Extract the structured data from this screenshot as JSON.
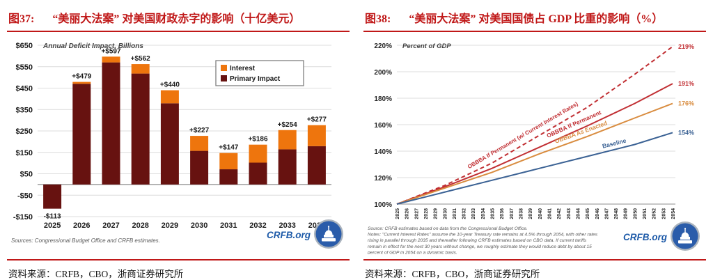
{
  "colors": {
    "title_red": "#c01818",
    "bar_maroon": "#671210",
    "bar_orange": "#ee750d",
    "line_red": "#c12f33",
    "line_orange": "#d98c3f",
    "line_blue": "#3b6294",
    "crfb_blue": "#1d5aa8",
    "grid_gray": "#dcdcdc",
    "axis_gray": "#8c8c8c",
    "label_dark": "#1a1a1a",
    "note_gray": "#595959"
  },
  "panels": [
    {
      "figure_label": "图37:",
      "title": "“美丽大法案” 对美国财政赤字的影响（十亿美元）",
      "footer": "资料来源：CRFB，CBO，浙商证券研究所"
    },
    {
      "figure_label": "图38:",
      "title": "“美丽大法案” 对美国国债占 GDP 比重的影响（%）",
      "footer": "资料来源：CRFB，CBO，浙商证券研究所"
    }
  ],
  "chart_data": [
    {
      "type": "bar",
      "stacked": true,
      "title": "Annual Deficit Impact, Billions",
      "categories": [
        "2025",
        "2026",
        "2027",
        "2028",
        "2029",
        "2030",
        "2031",
        "2032",
        "2033",
        "2034"
      ],
      "series": [
        {
          "name": "Primary Impact",
          "color": "#671210",
          "values": [
            -113,
            470,
            570,
            518,
            379,
            157,
            71,
            102,
            164,
            179
          ]
        },
        {
          "name": "Interest",
          "color": "#ee750d",
          "values": [
            0,
            9,
            27,
            44,
            61,
            70,
            76,
            84,
            90,
            98
          ]
        }
      ],
      "totals": [
        -113,
        479,
        597,
        562,
        440,
        227,
        147,
        186,
        254,
        277
      ],
      "total_labels": [
        "-$113",
        "+$479",
        "+$597",
        "+$562",
        "+$440",
        "+$227",
        "+$147",
        "+$186",
        "+$254",
        "+$277"
      ],
      "ylim": [
        -150,
        650
      ],
      "yticks": [
        650,
        550,
        450,
        350,
        250,
        150,
        50,
        -50,
        -150
      ],
      "ytick_labels": [
        "$650",
        "$550",
        "$450",
        "$350",
        "$250",
        "$150",
        "$50",
        "-$50",
        "-$150"
      ],
      "legend": [
        {
          "label": "Interest",
          "color": "#ee750d"
        },
        {
          "label": "Primary Impact",
          "color": "#671210"
        }
      ],
      "source_note": "Sources: Congressional Budget Office and CRFB estimates.",
      "logo_text": "CRFB.org"
    },
    {
      "type": "line",
      "title": "Percent of GDP",
      "x_years": [
        "2025",
        "2026",
        "2027",
        "2028",
        "2029",
        "2030",
        "2031",
        "2032",
        "2033",
        "2034",
        "2035",
        "2036",
        "2037",
        "2038",
        "2039",
        "2040",
        "2041",
        "2042",
        "2043",
        "2044",
        "2045",
        "2046",
        "2047",
        "2048",
        "2049",
        "2050",
        "2051",
        "2052",
        "2053",
        "2054"
      ],
      "ylim": [
        100,
        220
      ],
      "yticks": [
        220,
        200,
        180,
        160,
        140,
        120,
        100
      ],
      "ytick_labels": [
        "220%",
        "200%",
        "180%",
        "160%",
        "140%",
        "120%",
        "100%"
      ],
      "series": [
        {
          "name": "OBBBA If Permanent (w/ Current Interest Rates)",
          "color": "#c12f33",
          "dashed": true,
          "end_label": "219%",
          "points": [
            [
              2025,
              100
            ],
            [
              2030,
              114
            ],
            [
              2035,
              131
            ],
            [
              2040,
              152
            ],
            [
              2045,
              173
            ],
            [
              2050,
              198
            ],
            [
              2054,
              219
            ]
          ]
        },
        {
          "name": "OBBBA If Permanent",
          "color": "#c12f33",
          "dashed": false,
          "end_label": "191%",
          "points": [
            [
              2025,
              100
            ],
            [
              2030,
              113
            ],
            [
              2035,
              127
            ],
            [
              2040,
              143
            ],
            [
              2045,
              159
            ],
            [
              2050,
              176
            ],
            [
              2054,
              191
            ]
          ]
        },
        {
          "name": "OBBBA As Enacted",
          "color": "#d98c3f",
          "dashed": false,
          "end_label": "176%",
          "points": [
            [
              2025,
              100
            ],
            [
              2030,
              112
            ],
            [
              2035,
              124
            ],
            [
              2040,
              138
            ],
            [
              2045,
              151
            ],
            [
              2050,
              165
            ],
            [
              2054,
              176
            ]
          ]
        },
        {
          "name": "Baseline",
          "color": "#3b6294",
          "dashed": false,
          "end_label": "154%",
          "points": [
            [
              2025,
              100
            ],
            [
              2030,
              109
            ],
            [
              2035,
              118
            ],
            [
              2040,
              127
            ],
            [
              2045,
              136
            ],
            [
              2050,
              145
            ],
            [
              2054,
              154
            ]
          ]
        }
      ],
      "source_note": "Source: CRFB estimates based on data from the Congressional Budget Office.\nNotes: \"Current Interest Rates\" assume the 10-year Treasury rate remains at 4.5% through 2054, with other rates\nrising in parallel through 2035 and thereafter following CRFB estimates based on CBO data. If current tariffs\nremain in effect for the next 30 years without change, we roughly estimate they would reduce debt by about 15\npercent of GDP in 2054 on a dynamic basis.",
      "logo_text": "CRFB.org"
    }
  ]
}
